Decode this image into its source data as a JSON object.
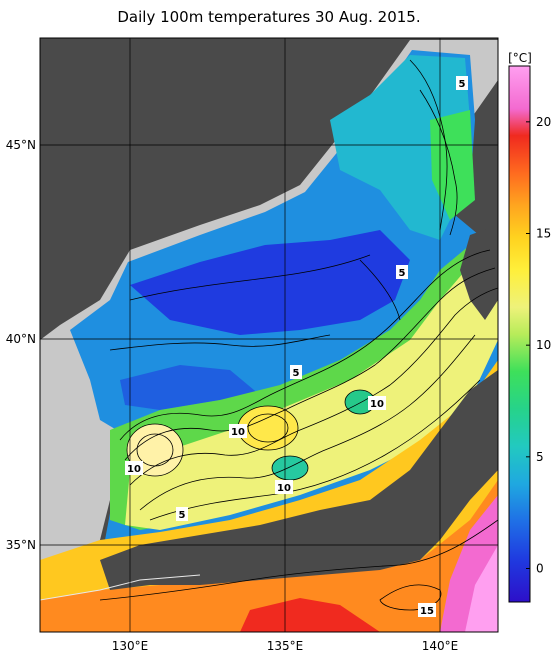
{
  "title": "Daily 100m temperatures 30 Aug. 2015.",
  "colorbar": {
    "unit": "[°C]",
    "ticks": [
      "0",
      "5",
      "10",
      "15",
      "20"
    ],
    "tick_values": [
      0,
      5,
      10,
      15,
      20
    ],
    "range": [
      -1.5,
      22.5
    ],
    "colors": [
      "#2d0fc9",
      "#1f3be0",
      "#1f6fe6",
      "#1fa8e0",
      "#22c9c0",
      "#26d38a",
      "#3ee05a",
      "#7ae04a",
      "#b8ec5a",
      "#eef27a",
      "#ffef3a",
      "#ffd21f",
      "#ffa51f",
      "#ff6b1f",
      "#f02a1f",
      "#f36ad0",
      "#ff9ff0"
    ]
  },
  "axes": {
    "longitude_labels": [
      "130°E",
      "135°E",
      "140°E"
    ],
    "latitude_labels": [
      "45°N",
      "40°N",
      "35°N"
    ]
  },
  "contour_labels": [
    "5",
    "5",
    "5",
    "5",
    "10",
    "10",
    "10",
    "10",
    "15"
  ],
  "colors": {
    "land": "#4a4a4a",
    "no_data": "#c8c8c8",
    "grid": "#000000"
  }
}
